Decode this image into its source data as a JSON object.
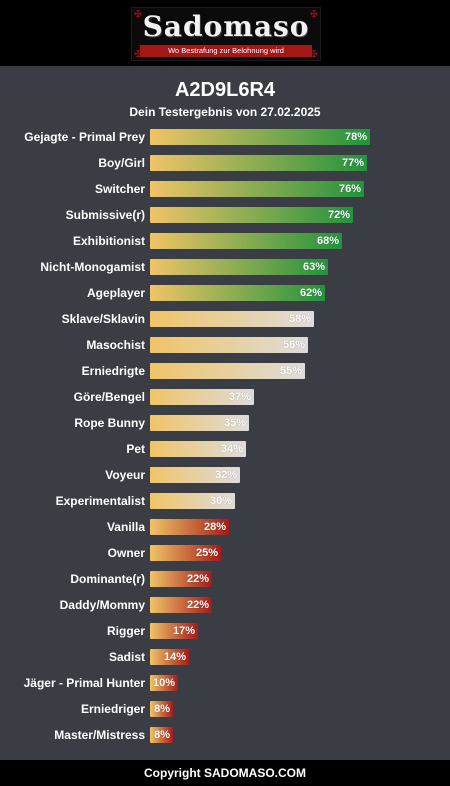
{
  "header": {
    "logo_text": "Sadomaso",
    "logo_tagline": "Wo Bestrafung zur Belohnung wird"
  },
  "page": {
    "title": "A2D9L6R4",
    "subtitle": "Dein Testergebnis von 27.02.2025"
  },
  "colors": {
    "bar_start": "#f0c466",
    "high": "#22933d",
    "mid": "#dedcda",
    "low": "#a41b1b"
  },
  "chart_data": {
    "type": "bar",
    "orientation": "horizontal",
    "xlim": [
      0,
      100
    ],
    "categories": [
      "Gejagte - Primal Prey",
      "Boy/Girl",
      "Switcher",
      "Submissive(r)",
      "Exhibitionist",
      "Nicht-Monogamist",
      "Ageplayer",
      "Sklave/Sklavin",
      "Masochist",
      "Erniedrigte",
      "Göre/Bengel",
      "Rope Bunny",
      "Pet",
      "Voyeur",
      "Experimentalist",
      "Vanilla",
      "Owner",
      "Dominante(r)",
      "Daddy/Mommy",
      "Rigger",
      "Sadist",
      "Jäger - Primal Hunter",
      "Erniedriger",
      "Master/Mistress"
    ],
    "values": [
      78,
      77,
      76,
      72,
      68,
      63,
      62,
      58,
      56,
      55,
      37,
      35,
      34,
      32,
      30,
      28,
      25,
      22,
      22,
      17,
      14,
      10,
      8,
      8
    ],
    "value_labels": [
      "78%",
      "77%",
      "76%",
      "72%",
      "68%",
      "63%",
      "62%",
      "58%",
      "56%",
      "55%",
      "37%",
      "35%",
      "34%",
      "32%",
      "30%",
      "28%",
      "25%",
      "22%",
      "22%",
      "17%",
      "14%",
      "10%",
      "8%",
      "8%"
    ]
  },
  "footer": {
    "text": "Copyright SADOMASO.COM"
  }
}
